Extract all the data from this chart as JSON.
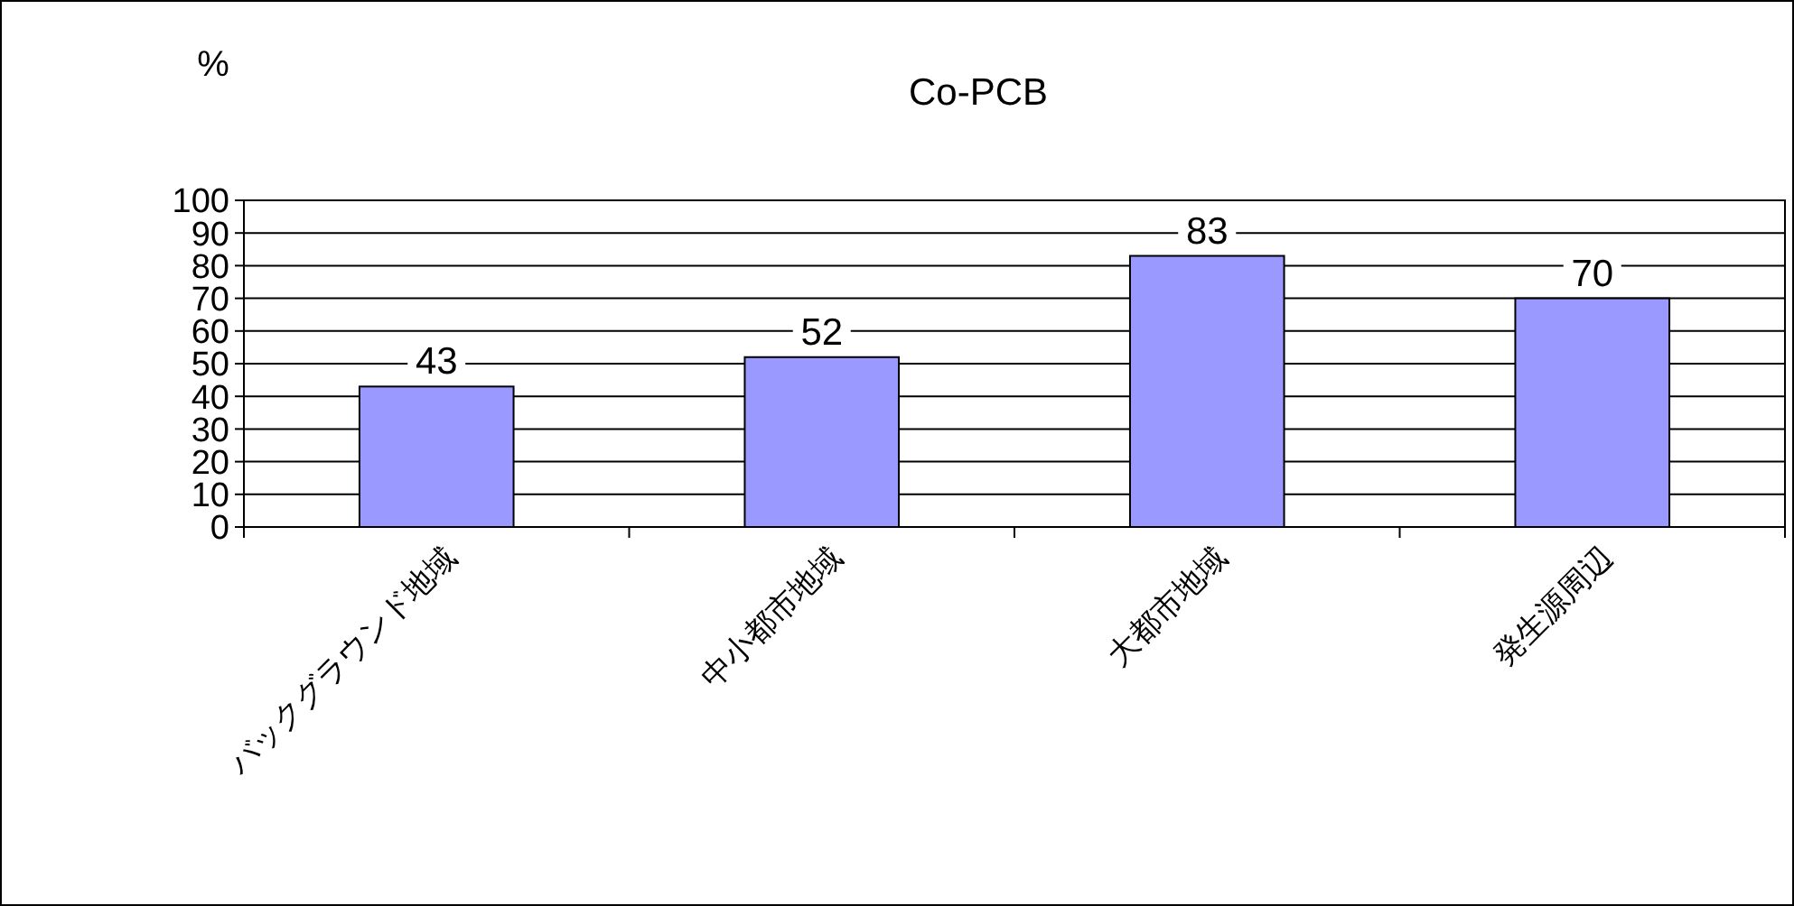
{
  "chart_data": {
    "type": "bar",
    "title": "Co-PCB",
    "ylabel": "%",
    "categories": [
      "バックグラウンド地域",
      "中小都市地域",
      "大都市地域",
      "発生源周辺"
    ],
    "values": [
      43,
      52,
      83,
      70
    ],
    "color": "#9999ff",
    "ylim": [
      0,
      100
    ],
    "yticks": [
      0,
      10,
      20,
      30,
      40,
      50,
      60,
      70,
      80,
      90,
      100
    ],
    "grid": "y",
    "data_labels": true
  }
}
